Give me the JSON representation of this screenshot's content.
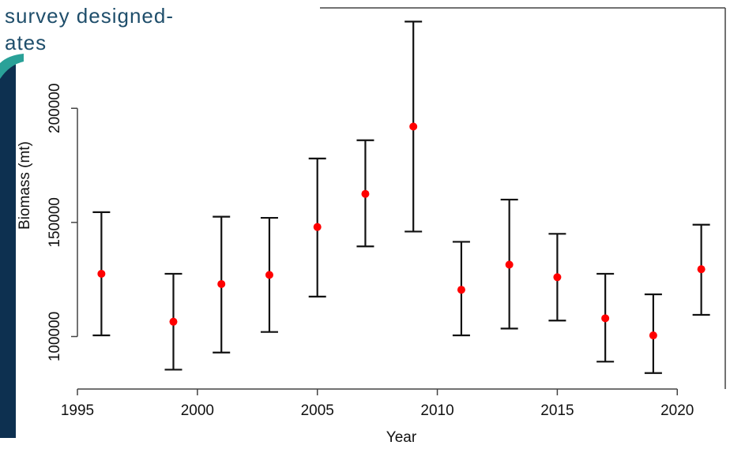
{
  "chart_data": {
    "type": "errorbar",
    "title_lines": [
      "survey designed-",
      "ates"
    ],
    "x_label": "Year",
    "y_label": "Biomass (mt)",
    "x": [
      1996,
      1999,
      2001,
      2003,
      2005,
      2007,
      2009,
      2011,
      2013,
      2015,
      2017,
      2019,
      2021
    ],
    "series": [
      {
        "color": "#ff0000",
        "values": [
          127500,
          106500,
          123000,
          127000,
          148000,
          162500,
          192000,
          120500,
          131500,
          126000,
          108000,
          100500,
          129500
        ],
        "lower": [
          100500,
          85500,
          93000,
          102000,
          117500,
          139500,
          146000,
          100500,
          103500,
          107000,
          89000,
          84000,
          109500
        ],
        "upper": [
          154500,
          127500,
          152500,
          152000,
          178000,
          186000,
          238000,
          141500,
          160000,
          145000,
          127500,
          118500,
          149000
        ]
      }
    ],
    "xlim": [
      1995,
      2022
    ],
    "ylim": [
      77000,
      244000
    ],
    "xticks": [
      1995,
      2000,
      2005,
      2010,
      2015,
      2020
    ],
    "yticks": [
      100000,
      150000,
      200000
    ]
  }
}
